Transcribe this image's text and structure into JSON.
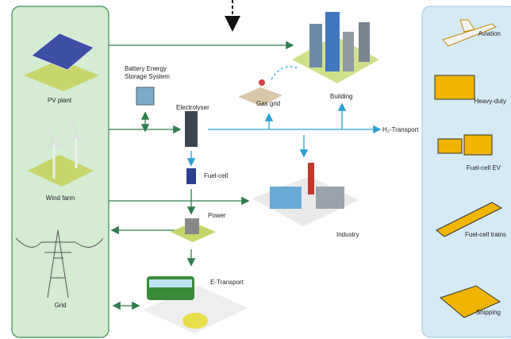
{
  "sources": {
    "pv_plant": "PV plant",
    "wind_farm": "Wind farm",
    "grid": "Grid"
  },
  "center": {
    "battery": [
      "Battery Energy",
      "Storage System"
    ],
    "electrolyser": "Electrolyser",
    "fuel_cell": "Fuel-cell",
    "power": "Power",
    "e_transport": "E-Transport",
    "gas_grid": "Gas grid",
    "building": "Building",
    "industry": "Industry",
    "h2_transport": "H₂-Transport"
  },
  "transport": [
    "Aviation",
    "Heavy-duty",
    "Fuel-cell EV",
    "Fuel-cell trains",
    "Shipping"
  ]
}
